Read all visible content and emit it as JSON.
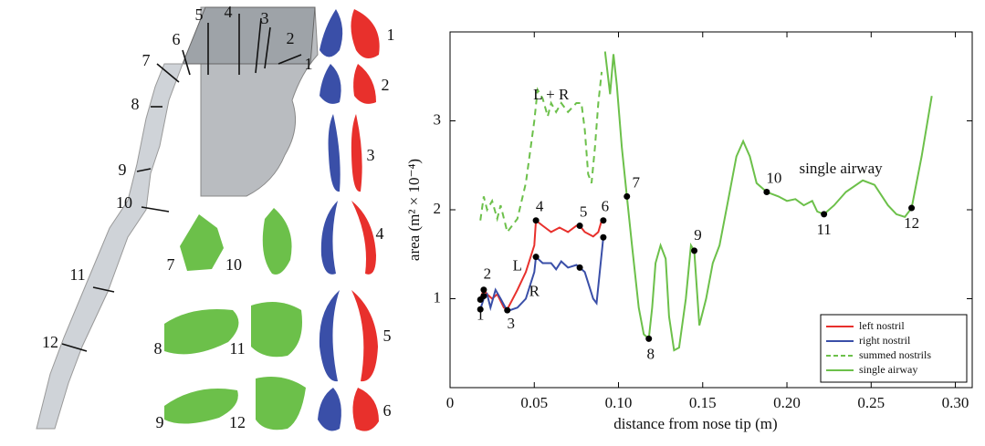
{
  "illustration": {
    "airway_sections": [
      "1",
      "2",
      "3",
      "4",
      "5",
      "6",
      "7",
      "8",
      "9",
      "10",
      "11",
      "12"
    ],
    "nostril_sections": [
      "1",
      "2",
      "3",
      "4",
      "5",
      "6"
    ],
    "cross_sections": [
      "7",
      "10",
      "8",
      "11",
      "9",
      "12"
    ]
  },
  "chart_data": {
    "type": "line",
    "xlabel": "distance from nose tip (m)",
    "ylabel": "area (m² × 10⁻⁴)",
    "xlim": [
      0,
      0.31
    ],
    "ylim": [
      0,
      4
    ],
    "xticks": [
      0,
      0.05,
      {
        "value": 0.1,
        "label": "0.10"
      },
      0.15,
      {
        "value": 0.2,
        "label": "0.20"
      },
      0.25,
      {
        "value": 0.3,
        "label": "0.30"
      }
    ],
    "yticks": [
      1,
      2,
      3
    ],
    "grid": false,
    "legend": "lower right",
    "series": [
      {
        "name": "left nostril",
        "color": "#e8302c",
        "style": "solid",
        "x": [
          0.018,
          0.02,
          0.022,
          0.025,
          0.028,
          0.032,
          0.034,
          0.04,
          0.045,
          0.05,
          0.051,
          0.055,
          0.06,
          0.065,
          0.07,
          0.075,
          0.077,
          0.08,
          0.085,
          0.088,
          0.09
        ],
        "values": [
          1.0,
          1.1,
          1.05,
          1.0,
          1.05,
          0.9,
          0.88,
          1.1,
          1.3,
          1.6,
          1.88,
          1.82,
          1.75,
          1.8,
          1.75,
          1.82,
          1.82,
          1.75,
          1.7,
          1.75,
          1.88
        ]
      },
      {
        "name": "right nostril",
        "color": "#3a4fa8",
        "style": "solid",
        "x": [
          0.018,
          0.02,
          0.022,
          0.024,
          0.027,
          0.03,
          0.034,
          0.04,
          0.045,
          0.05,
          0.051,
          0.055,
          0.06,
          0.063,
          0.066,
          0.07,
          0.075,
          0.077,
          0.08,
          0.085,
          0.087,
          0.091
        ],
        "values": [
          0.88,
          1.0,
          1.05,
          0.9,
          1.1,
          1.0,
          0.86,
          0.9,
          1.0,
          1.3,
          1.47,
          1.4,
          1.4,
          1.33,
          1.42,
          1.35,
          1.38,
          1.35,
          1.3,
          1.0,
          0.95,
          1.69
        ]
      },
      {
        "name": "summed nostrils",
        "color": "#6cc04a",
        "style": "dashed",
        "x": [
          0.018,
          0.02,
          0.022,
          0.025,
          0.028,
          0.03,
          0.034,
          0.04,
          0.045,
          0.05,
          0.052,
          0.055,
          0.058,
          0.06,
          0.063,
          0.066,
          0.07,
          0.075,
          0.078,
          0.08,
          0.082,
          0.084,
          0.086,
          0.088,
          0.09
        ],
        "values": [
          1.88,
          2.15,
          2.0,
          2.1,
          1.9,
          2.05,
          1.75,
          1.9,
          2.3,
          3.0,
          3.35,
          3.25,
          3.05,
          3.2,
          3.1,
          3.2,
          3.1,
          3.2,
          3.2,
          2.9,
          2.4,
          2.3,
          2.7,
          3.2,
          3.55
        ]
      },
      {
        "name": "single airway",
        "color": "#6cc04a",
        "style": "solid",
        "x": [
          0.092,
          0.095,
          0.097,
          0.099,
          0.102,
          0.105,
          0.108,
          0.112,
          0.115,
          0.118,
          0.12,
          0.122,
          0.125,
          0.128,
          0.13,
          0.133,
          0.136,
          0.14,
          0.143,
          0.145,
          0.148,
          0.152,
          0.156,
          0.16,
          0.165,
          0.17,
          0.174,
          0.178,
          0.182,
          0.188,
          0.195,
          0.2,
          0.205,
          0.21,
          0.215,
          0.218,
          0.222,
          0.228,
          0.235,
          0.245,
          0.252,
          0.26,
          0.265,
          0.27,
          0.274,
          0.28,
          0.286
        ],
        "values": [
          3.78,
          3.3,
          3.75,
          3.4,
          2.7,
          2.15,
          1.6,
          0.9,
          0.6,
          0.55,
          0.9,
          1.4,
          1.6,
          1.45,
          0.8,
          0.42,
          0.45,
          1.0,
          1.6,
          1.54,
          0.7,
          1.0,
          1.4,
          1.6,
          2.1,
          2.6,
          2.77,
          2.6,
          2.3,
          2.2,
          2.15,
          2.1,
          2.12,
          2.05,
          2.1,
          1.98,
          1.95,
          2.05,
          2.2,
          2.33,
          2.28,
          2.05,
          1.95,
          1.92,
          2.02,
          2.6,
          3.28
        ]
      }
    ],
    "markers": {
      "x": [
        0.018,
        0.02,
        0.034,
        0.051,
        0.077,
        0.091,
        0.105,
        0.118,
        0.145,
        0.188,
        0.222,
        0.274,
        0.018,
        0.02,
        0.051,
        0.077,
        0.091
      ],
      "values": [
        0.99,
        1.1,
        0.87,
        1.88,
        1.82,
        1.88,
        2.15,
        0.55,
        1.54,
        2.2,
        1.95,
        2.02,
        0.88,
        1.03,
        1.47,
        1.35,
        1.69
      ],
      "labels": [
        "1",
        "2",
        "3",
        "4",
        "5",
        "6",
        "7",
        "8",
        "9",
        "10",
        "11",
        "12",
        null,
        null,
        null,
        null,
        null
      ]
    },
    "annotations": [
      "L + R",
      "L",
      "R",
      "single airway"
    ]
  }
}
